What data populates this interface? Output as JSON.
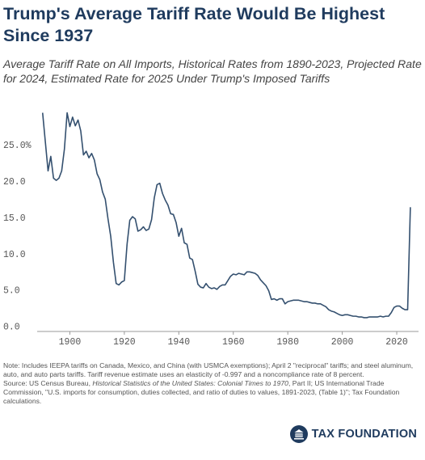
{
  "chart_data": {
    "type": "line",
    "title": "Trump's Average Tariff Rate Would Be Highest Since 1937",
    "subtitle": "Average Tariff Rate on All Imports, Historical Rates from 1890-2023, Projected Rate for 2024, Estimated Rate for 2025 Under Trump's Imposed Tariffs",
    "x": [
      1890,
      1891,
      1892,
      1893,
      1894,
      1895,
      1896,
      1897,
      1898,
      1899,
      1900,
      1901,
      1902,
      1903,
      1904,
      1905,
      1906,
      1907,
      1908,
      1909,
      1910,
      1911,
      1912,
      1913,
      1914,
      1915,
      1916,
      1917,
      1918,
      1919,
      1920,
      1921,
      1922,
      1923,
      1924,
      1925,
      1926,
      1927,
      1928,
      1929,
      1930,
      1931,
      1932,
      1933,
      1934,
      1935,
      1936,
      1937,
      1938,
      1939,
      1940,
      1941,
      1942,
      1943,
      1944,
      1945,
      1946,
      1947,
      1948,
      1949,
      1950,
      1951,
      1952,
      1953,
      1954,
      1955,
      1956,
      1957,
      1958,
      1959,
      1960,
      1961,
      1962,
      1963,
      1964,
      1965,
      1966,
      1967,
      1968,
      1969,
      1970,
      1971,
      1972,
      1973,
      1974,
      1975,
      1976,
      1977,
      1978,
      1979,
      1980,
      1981,
      1982,
      1983,
      1984,
      1985,
      1986,
      1987,
      1988,
      1989,
      1990,
      1991,
      1992,
      1993,
      1994,
      1995,
      1996,
      1997,
      1998,
      1999,
      2000,
      2001,
      2002,
      2003,
      2004,
      2005,
      2006,
      2007,
      2008,
      2009,
      2010,
      2011,
      2012,
      2013,
      2014,
      2015,
      2016,
      2017,
      2018,
      2019,
      2020,
      2021,
      2022,
      2023,
      2024,
      2025
    ],
    "values": [
      29.5,
      25.5,
      21.5,
      23.5,
      20.5,
      20.2,
      20.5,
      21.5,
      24.5,
      29.5,
      27.6,
      28.9,
      27.7,
      28.5,
      27.0,
      23.7,
      24.2,
      23.3,
      23.9,
      23.0,
      21.1,
      20.3,
      18.6,
      17.6,
      14.9,
      12.5,
      8.9,
      6.0,
      5.8,
      6.2,
      6.4,
      11.4,
      14.7,
      15.2,
      14.9,
      13.2,
      13.4,
      13.8,
      13.3,
      13.5,
      14.8,
      17.8,
      19.6,
      19.8,
      18.4,
      17.5,
      16.8,
      15.6,
      15.5,
      14.4,
      12.5,
      13.6,
      11.6,
      11.4,
      9.5,
      9.3,
      7.7,
      5.9,
      5.5,
      5.4,
      6.0,
      5.5,
      5.3,
      5.4,
      5.2,
      5.6,
      5.8,
      5.8,
      6.4,
      7.0,
      7.3,
      7.2,
      7.4,
      7.3,
      7.2,
      7.6,
      7.6,
      7.5,
      7.4,
      7.1,
      6.5,
      6.1,
      5.7,
      5.0,
      3.8,
      3.9,
      3.7,
      3.9,
      3.9,
      3.2,
      3.5,
      3.6,
      3.7,
      3.7,
      3.7,
      3.6,
      3.5,
      3.5,
      3.4,
      3.3,
      3.3,
      3.2,
      3.2,
      3.0,
      2.8,
      2.4,
      2.2,
      2.1,
      1.9,
      1.7,
      1.6,
      1.7,
      1.7,
      1.6,
      1.5,
      1.5,
      1.4,
      1.4,
      1.3,
      1.3,
      1.4,
      1.4,
      1.4,
      1.4,
      1.5,
      1.4,
      1.5,
      1.5,
      2.0,
      2.7,
      2.9,
      2.9,
      2.6,
      2.4,
      2.4,
      16.5
    ],
    "color": "#34506f",
    "xlim": [
      1888,
      2028
    ],
    "xticks": [
      1900,
      1920,
      1940,
      1960,
      1980,
      2000,
      2020
    ],
    "ylim": [
      -0.6,
      30
    ],
    "yticks": [
      {
        "value": 0,
        "label": "0.0"
      },
      {
        "value": 5,
        "label": "5.0"
      },
      {
        "value": 10,
        "label": "10.0"
      },
      {
        "value": 15,
        "label": "15.0"
      },
      {
        "value": 20,
        "label": "20.0"
      },
      {
        "value": 25,
        "label": "25.0%"
      }
    ],
    "grid": false,
    "note": "Note: Includes IEEPA tariffs on Canada, Mexico, and China (with USMCA exemptions); April 2 \"reciprocal\" tariffs; and steel aluminum, auto, and auto parts tariffs. Tariff revenue estimate uses an elasticity of -0.997 and a noncompliance rate of 8 percent.",
    "source": {
      "before": "Source: US Census Bureau,",
      "italic": "Historical Statistics of the United States: Colonial Times to 1970",
      "after": ", Part II; US International Trade Commission, \"U.S. imports for consumption, duties collected, and ratio of duties to values, 1891-2023, (Table 1)\"; Tax Foundation calculations."
    },
    "logo": "TAX FOUNDATION"
  }
}
